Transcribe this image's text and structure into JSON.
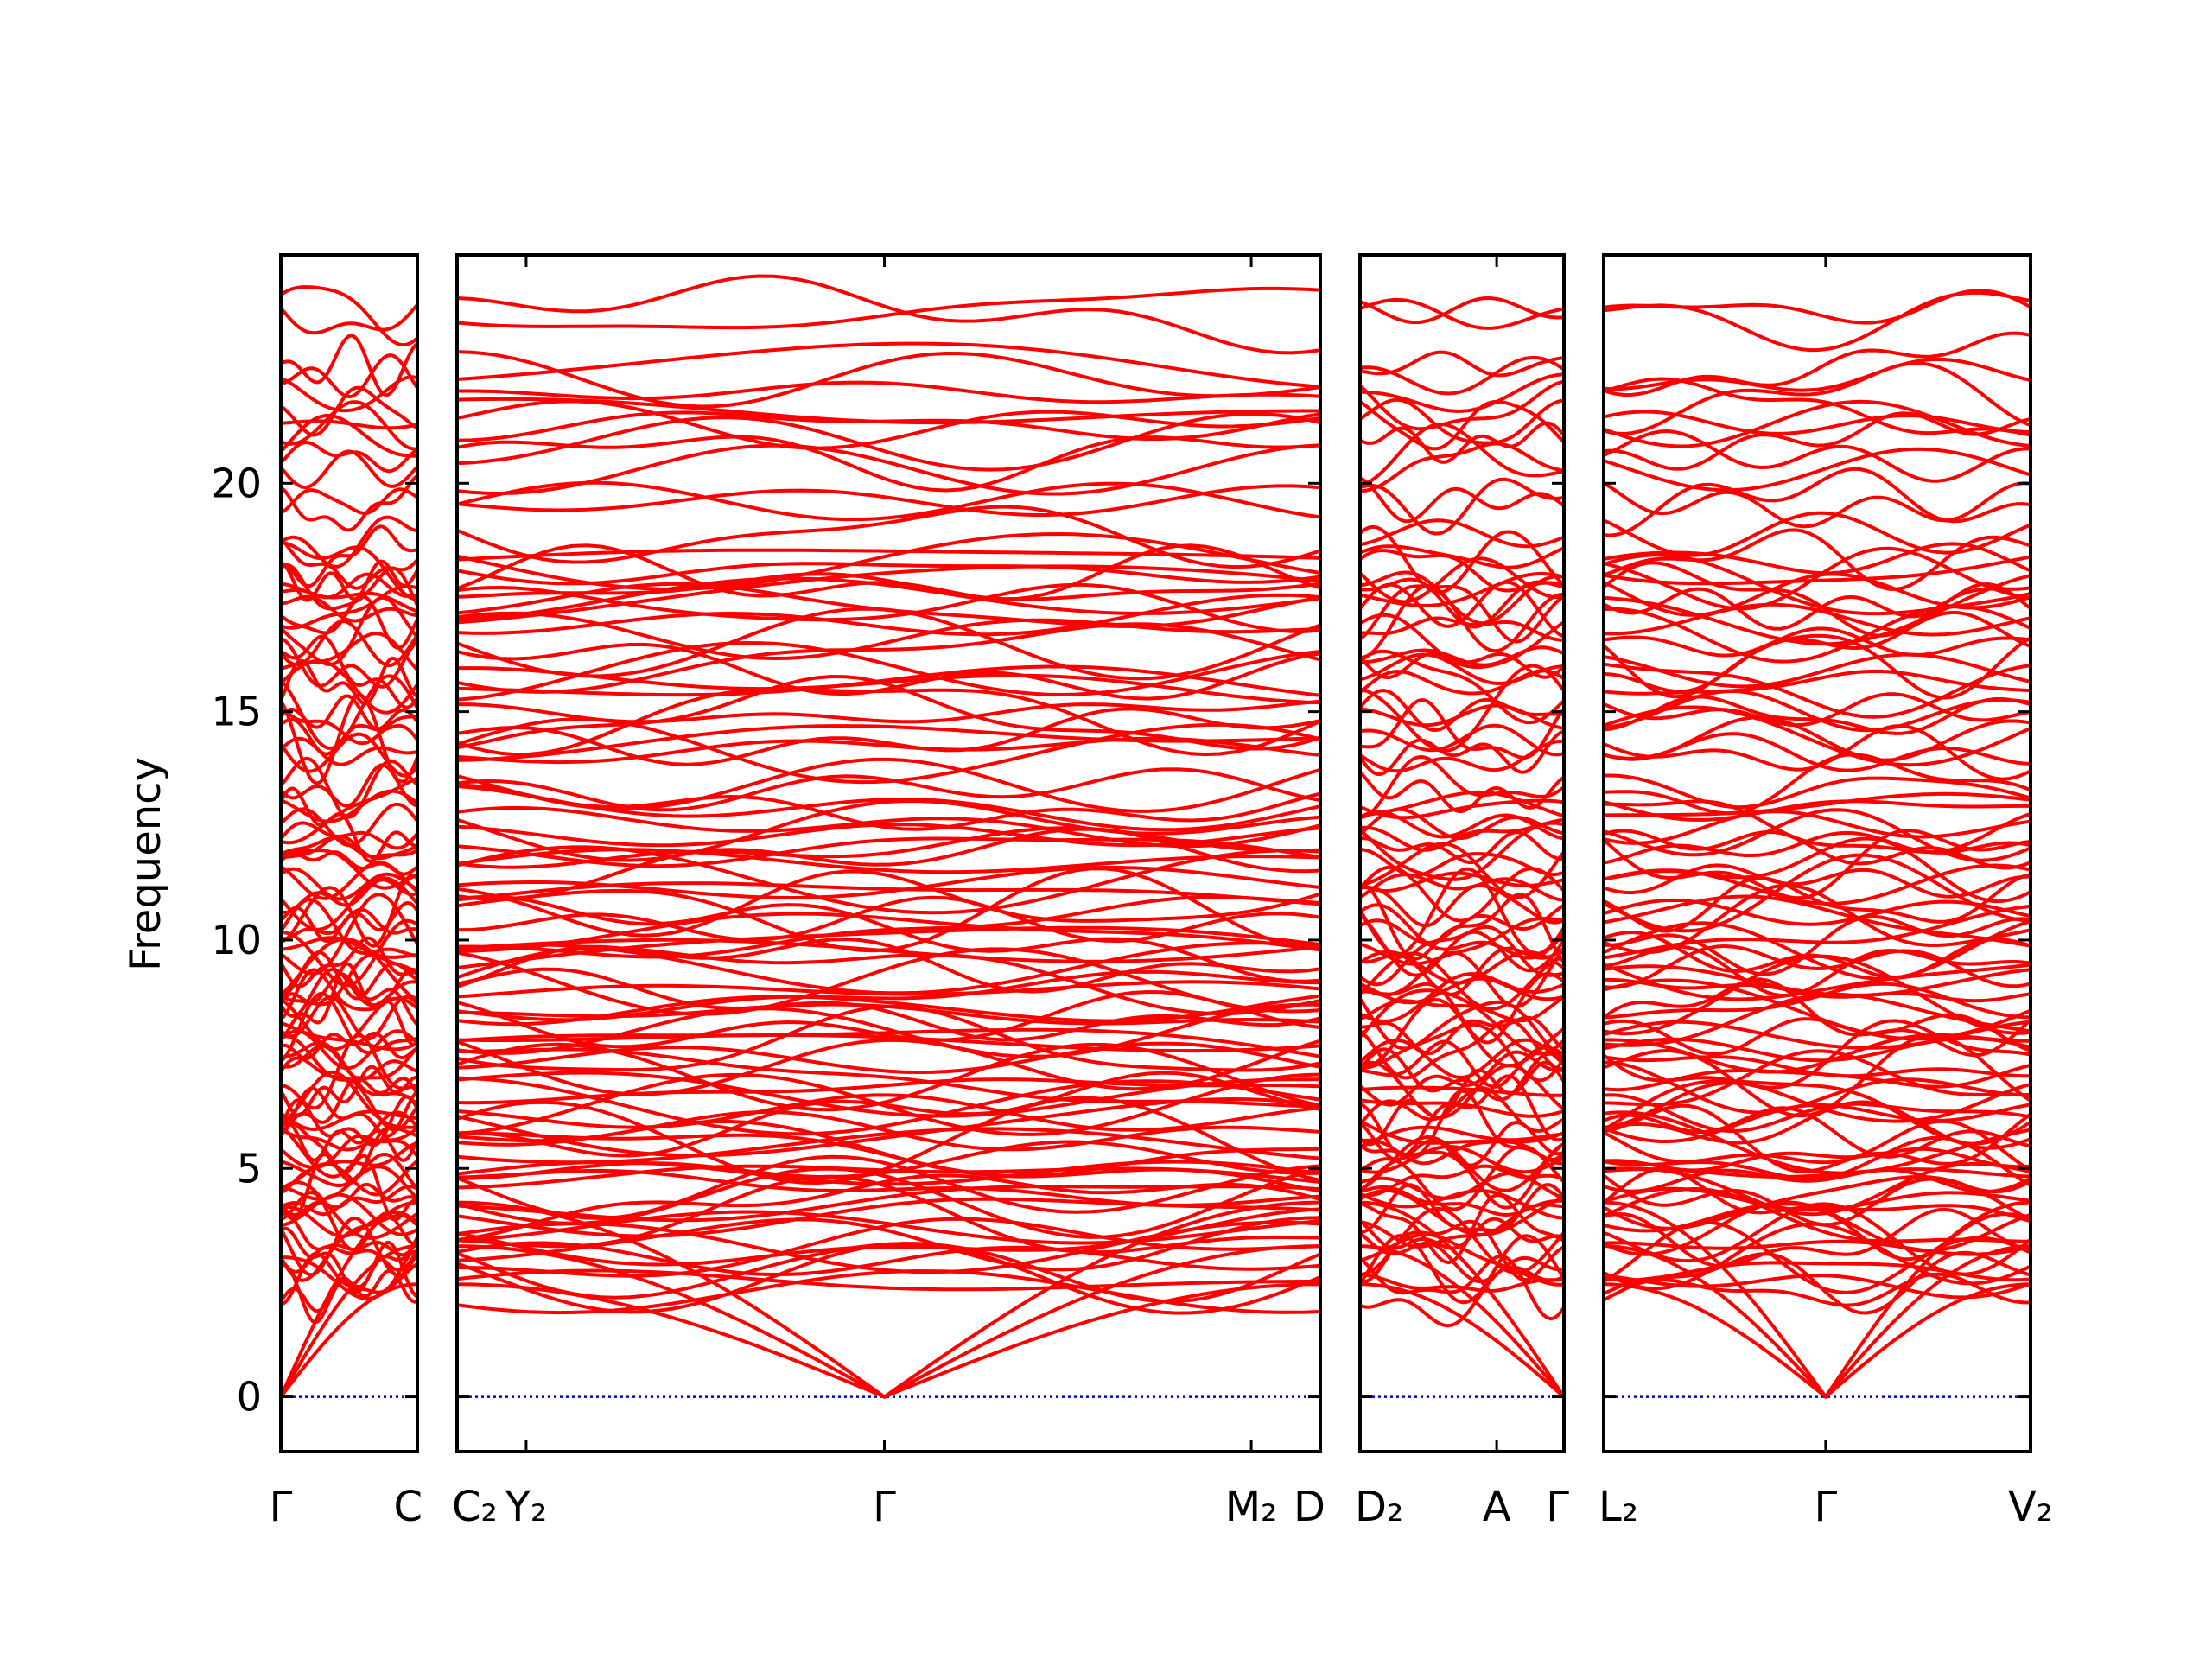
{
  "chart_data": {
    "type": "line",
    "ylabel": "Frequency",
    "ylim": [
      -1.2,
      25
    ],
    "yticks": [
      0,
      5,
      10,
      15,
      20
    ],
    "grid": false,
    "legend": "none",
    "band_color": "#ff0000",
    "zero_line_color": "#0000cc",
    "zero_line_value": 0,
    "panels": [
      {
        "ticks": [
          {
            "x": 0,
            "label": "Γ"
          },
          {
            "x": 1,
            "label": "C"
          }
        ],
        "y_labels": true
      },
      {
        "ticks": [
          {
            "x": 0,
            "label": "C₂"
          },
          {
            "x": 0.08,
            "label": "Y₂"
          },
          {
            "x": 0.495,
            "label": "Γ"
          },
          {
            "x": 0.92,
            "label": "M₂"
          },
          {
            "x": 1,
            "label": "D"
          }
        ],
        "y_labels": false
      },
      {
        "ticks": [
          {
            "x": 0,
            "label": "D₂"
          },
          {
            "x": 0.67,
            "label": "A"
          },
          {
            "x": 1,
            "label": "Γ"
          }
        ],
        "y_labels": false
      },
      {
        "ticks": [
          {
            "x": 0,
            "label": "L₂"
          },
          {
            "x": 0.52,
            "label": "Γ"
          },
          {
            "x": 1,
            "label": "V₂"
          }
        ],
        "y_labels": false
      }
    ],
    "band_groups": [
      {
        "range": [
          0,
          0.3
        ],
        "values": [
          23.7,
          22.3,
          21.3,
          20.9,
          20.3,
          19.6,
          18.3,
          17.9,
          17.6,
          17.3,
          16.7,
          16.2,
          15.6,
          15.0,
          14.5,
          14.1,
          13.4,
          12.9,
          12.5,
          12.0,
          11.6,
          11.2,
          10.8,
          10.4,
          10.1,
          9.8,
          9.5,
          9.2,
          8.9,
          8.6,
          8.3,
          8.0,
          7.7,
          7.4,
          7.0,
          6.7,
          6.4,
          6.1,
          5.8,
          5.5,
          5.2,
          4.9,
          4.6,
          4.3,
          4.0,
          3.7,
          3.4,
          3.1,
          2.8,
          2.5
        ]
      },
      {
        "range": [
          0.3,
          1.0
        ],
        "values": [
          23.8,
          22.6,
          21.9,
          21.6,
          21.3,
          20.6,
          19.6,
          18.9,
          18.4,
          18.1,
          17.7,
          17.5,
          17.3,
          17.0,
          16.5,
          16.1,
          15.9,
          15.6,
          15.0,
          14.9,
          14.4,
          14.1,
          13.3,
          12.9,
          12.5,
          12.3,
          12.0,
          11.7,
          11.3,
          11.0,
          10.6,
          10.3,
          10.0,
          9.7,
          9.4,
          9.1,
          8.8,
          8.5,
          8.2,
          7.9,
          7.6,
          7.3,
          7.0,
          6.7,
          6.4,
          6.2,
          5.9,
          5.6,
          5.4,
          5.1,
          4.8,
          4.6,
          4.3,
          4.0,
          3.8,
          3.5,
          3.3,
          3.0,
          2.6,
          2.3
        ]
      }
    ]
  }
}
